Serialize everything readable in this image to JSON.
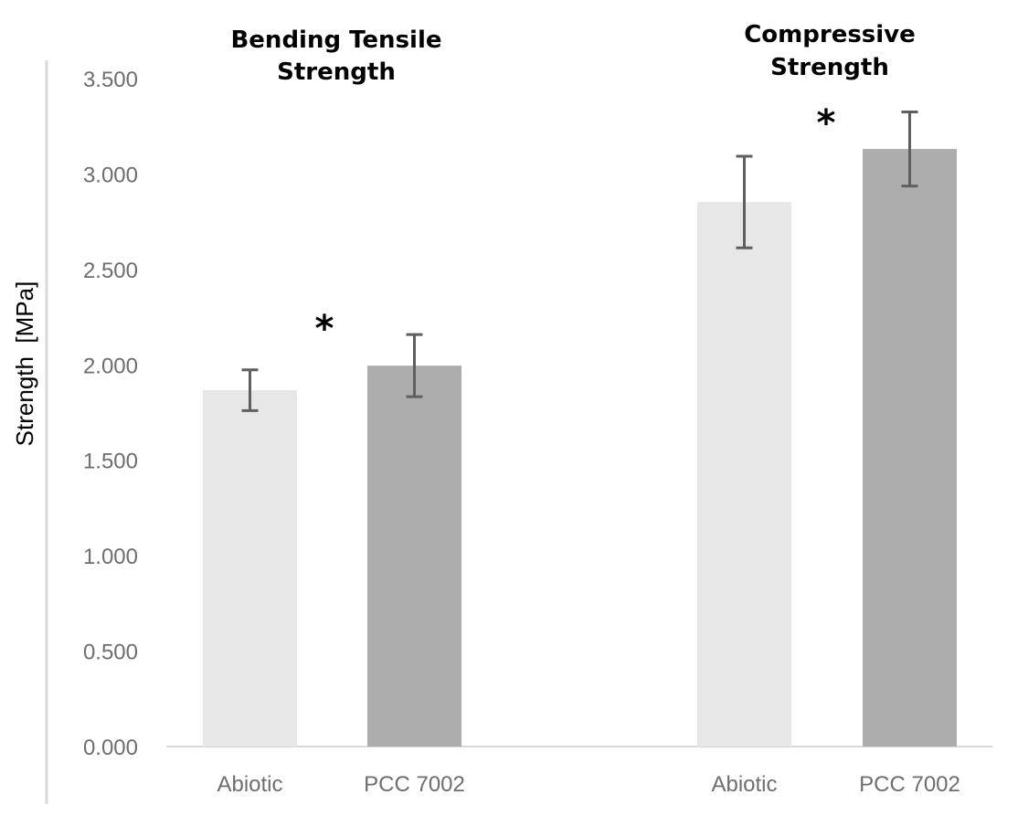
{
  "chart_data": {
    "type": "bar",
    "title": "",
    "xlabel": "",
    "ylabel": "Strength  [MPa]",
    "ylim": [
      0,
      3.5
    ],
    "yticks": [
      0,
      0.5,
      1.0,
      1.5,
      2.0,
      2.5,
      3.0,
      3.5
    ],
    "ytick_labels": [
      "0.000",
      "0.500",
      "1.000",
      "1.500",
      "2.000",
      "2.500",
      "3.000",
      "3.500"
    ],
    "grid": false,
    "legend": "none",
    "groups": [
      {
        "title": "Bending Tensile Strength",
        "title_lines": [
          "Bending Tensile",
          "Strength"
        ],
        "significance_marker": "*",
        "bars": [
          {
            "category": "Abiotic",
            "value": 1.867,
            "error": 0.107,
            "color": "#e7e7e7"
          },
          {
            "category": "PCC 7002",
            "value": 1.996,
            "error": 0.163,
            "color": "#adadad"
          }
        ]
      },
      {
        "title": "Compressive Strength",
        "title_lines": [
          "Compressive",
          "Strength"
        ],
        "significance_marker": "*",
        "bars": [
          {
            "category": "Abiotic",
            "value": 2.853,
            "error": 0.24,
            "color": "#e7e7e7"
          },
          {
            "category": "PCC 7002",
            "value": 3.131,
            "error": 0.194,
            "color": "#adadad"
          }
        ]
      }
    ],
    "colors": {
      "abiotic": "#e7e7e7",
      "pcc": "#adadad",
      "error_bar": "#5f5f5f",
      "axis": "#d9d9d9",
      "tick_text": "#6e6e6e"
    }
  }
}
